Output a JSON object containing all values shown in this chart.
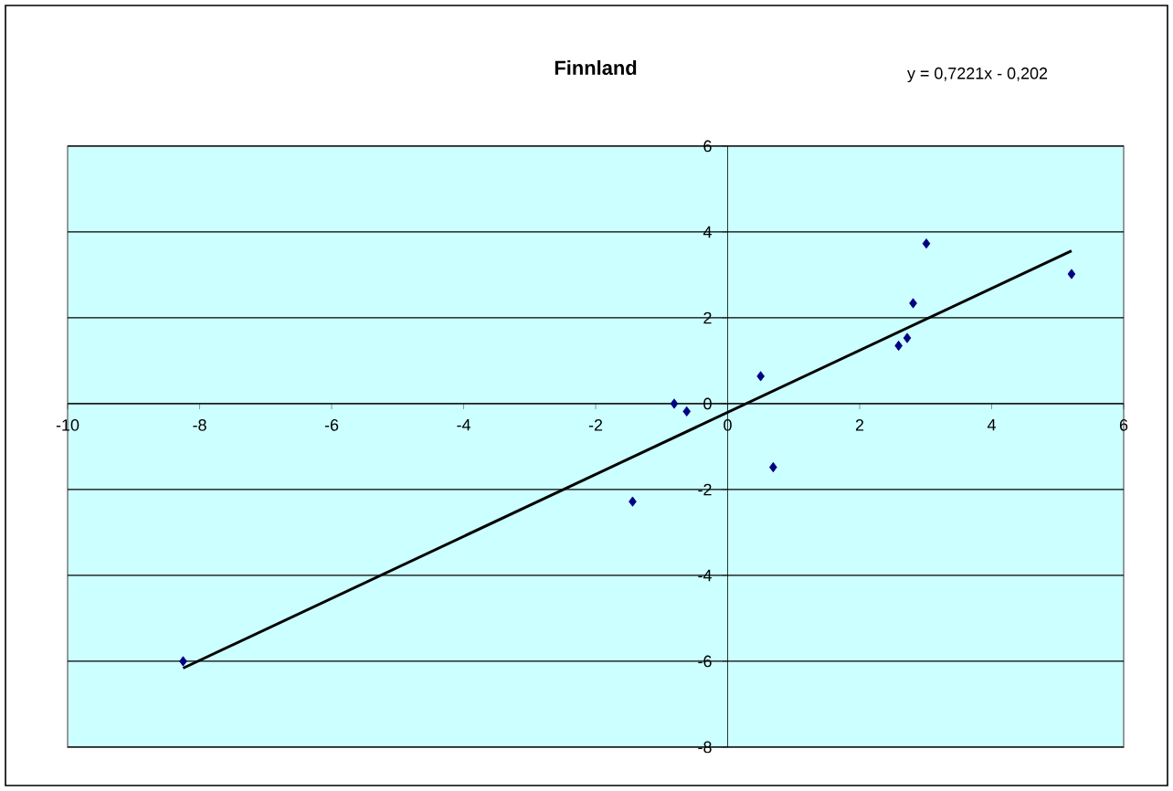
{
  "chart_data": {
    "type": "scatter",
    "title": "Finnland",
    "annotations": [
      "y = 0,7221x - 0,202"
    ],
    "xlim": [
      -10,
      6
    ],
    "xticks": [
      -10,
      -8,
      -6,
      -4,
      -2,
      0,
      2,
      4,
      6
    ],
    "ylim": [
      -8,
      6
    ],
    "yticks": [
      -8,
      -6,
      -4,
      -2,
      0,
      2,
      4,
      6
    ],
    "grid": "y",
    "series": [
      {
        "type": "scatter",
        "color": "#000080",
        "marker": "diamond",
        "x": [
          -8.25,
          -1.44,
          -0.81,
          -0.62,
          0.5,
          0.69,
          2.59,
          2.72,
          2.81,
          3.01,
          5.21
        ],
        "values": [
          -6.0,
          -2.28,
          0.0,
          -0.18,
          0.64,
          -1.48,
          1.35,
          1.53,
          2.34,
          3.73,
          3.02
        ]
      },
      {
        "type": "line",
        "color": "#000000",
        "marker": "none",
        "line_style": "solid",
        "x": [
          -8.25,
          5.21
        ],
        "values": [
          -6.16,
          3.56
        ]
      }
    ]
  }
}
